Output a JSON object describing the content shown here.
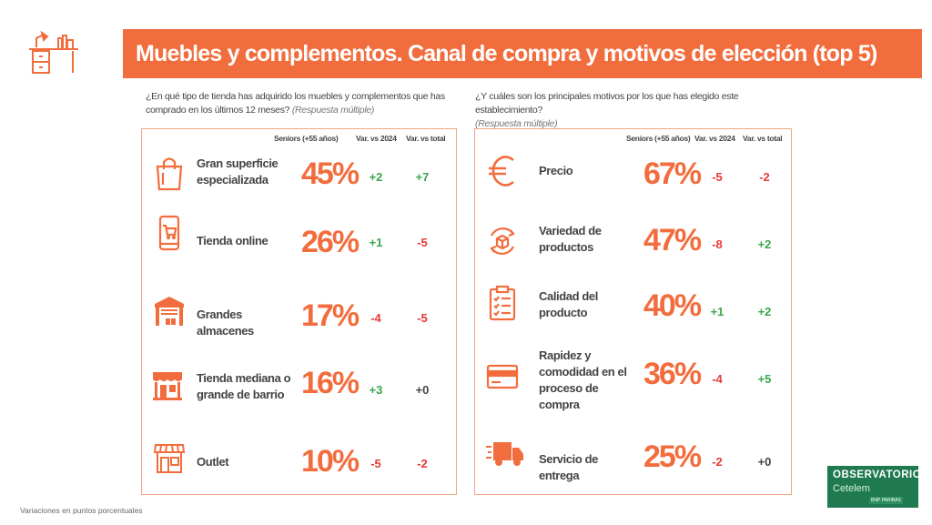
{
  "title": "Muebles y complementos. Canal de compra y motivos de elección (top 5)",
  "left": {
    "question": "¿En qué tipo de tienda has adquirido los muebles y complementos que has comprado en los últimos 12 meses?",
    "note": "(Respuesta múltiple)",
    "headers": {
      "seniors": "Seniors (+55 años)",
      "var2024": "Var. vs 2024",
      "vartotal": "Var. vs total"
    },
    "rows": [
      {
        "label": "Gran superficie especializada",
        "pct": "45%",
        "var2024": "+2",
        "vartotal": "+7",
        "icon": "shopping-bag-icon"
      },
      {
        "label": "Tienda online",
        "pct": "26%",
        "var2024": "+1",
        "vartotal": "-5",
        "icon": "smartphone-cart-icon"
      },
      {
        "label": "Grandes almacenes",
        "pct": "17%",
        "var2024": "-4",
        "vartotal": "-5",
        "icon": "warehouse-icon"
      },
      {
        "label": "Tienda mediana o grande de barrio",
        "pct": "16%",
        "var2024": "+3",
        "vartotal": "+0",
        "icon": "storefront-icon"
      },
      {
        "label": "Outlet",
        "pct": "10%",
        "var2024": "-5",
        "vartotal": "-2",
        "icon": "shop-awning-icon"
      }
    ]
  },
  "right": {
    "question": "¿Y cuáles son los principales motivos por los que has elegido este establecimiento?",
    "note": "(Respuesta múltiple)",
    "headers": {
      "seniors": "Seniors (+55 años)",
      "var2024": "Var. vs 2024",
      "vartotal": "Var. vs total"
    },
    "rows": [
      {
        "label": "Precio",
        "pct": "67%",
        "var2024": "-5",
        "vartotal": "-2",
        "icon": "euro-icon"
      },
      {
        "label": "Variedad de productos",
        "pct": "47%",
        "var2024": "-8",
        "vartotal": "+2",
        "icon": "product-variety-icon"
      },
      {
        "label": "Calidad del producto",
        "pct": "40%",
        "var2024": "+1",
        "vartotal": "+2",
        "icon": "clipboard-checklist-icon"
      },
      {
        "label": "Rapidez y comodidad en el proceso de compra",
        "pct": "36%",
        "var2024": "-4",
        "vartotal": "+5",
        "icon": "credit-card-icon"
      },
      {
        "label": "Servicio de entrega",
        "pct": "25%",
        "var2024": "-2",
        "vartotal": "+0",
        "icon": "delivery-truck-icon"
      }
    ]
  },
  "footnote": "Variaciones en puntos porcentuales",
  "logo": {
    "line1": "OBSERVATORIO",
    "line2": "Cetelem",
    "line3": "BNP PARIBAS"
  },
  "colors": {
    "accent": "#f26d3d",
    "positive": "#3aa64a",
    "negative": "#e53935",
    "logo_bg": "#1f7a4f"
  }
}
